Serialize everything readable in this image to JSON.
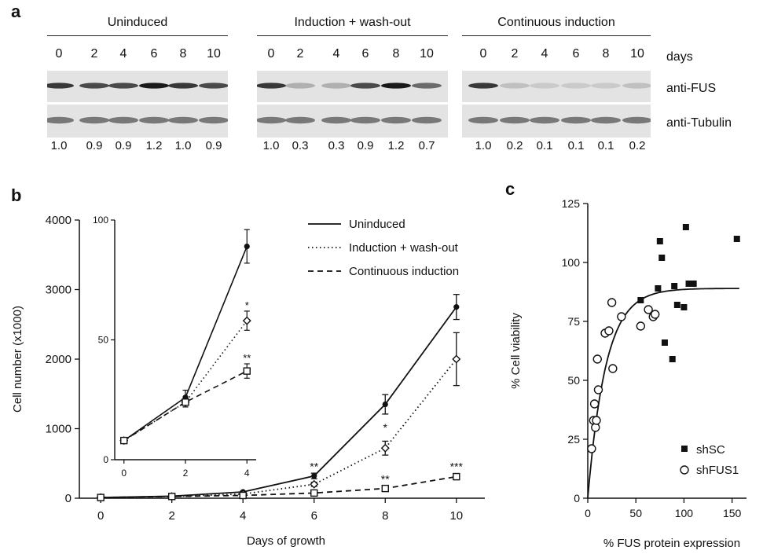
{
  "panel_a": {
    "letter": "a",
    "groups": [
      {
        "title": "Uninduced",
        "days": [
          "0",
          "2",
          "4",
          "6",
          "8",
          "10"
        ],
        "quant": [
          "1.0",
          "0.9",
          "0.9",
          "1.2",
          "1.0",
          "0.9"
        ],
        "fus": [
          1.0,
          0.9,
          0.9,
          1.2,
          1.0,
          0.9
        ],
        "tub": [
          1,
          1,
          1,
          1,
          1,
          1
        ]
      },
      {
        "title": "Induction + wash-out",
        "days": [
          "0",
          "2",
          "4",
          "6",
          "8",
          "10"
        ],
        "quant": [
          "1.0",
          "0.3",
          "0.3",
          "0.9",
          "1.2",
          "0.7"
        ],
        "fus": [
          1.0,
          0.3,
          0.3,
          0.9,
          1.2,
          0.7
        ],
        "tub": [
          1,
          1,
          1,
          1,
          1,
          1
        ]
      },
      {
        "title": "Continuous induction",
        "days": [
          "0",
          "2",
          "4",
          "6",
          "8",
          "10"
        ],
        "quant": [
          "1.0",
          "0.2",
          "0.1",
          "0.1",
          "0.1",
          "0.2"
        ],
        "fus": [
          1.0,
          0.2,
          0.1,
          0.1,
          0.1,
          0.2
        ],
        "tub": [
          1,
          1,
          1,
          1,
          1,
          1
        ]
      }
    ],
    "days_label": "days",
    "labels": {
      "fus": "anti-FUS",
      "tubulin": "anti-Tubulin"
    }
  },
  "chart_data": [
    {
      "panel": "b",
      "type": "line",
      "xlabel": "Days of growth",
      "ylabel": "Cell number (x1000)",
      "x": [
        0,
        2,
        4,
        6,
        8,
        10
      ],
      "xlim": [
        -0.6,
        10.8
      ],
      "ylim": [
        0,
        4000
      ],
      "xticks": [
        "0",
        "2",
        "4",
        "6",
        "8",
        "10"
      ],
      "yticks": [
        "0",
        "1000",
        "2000",
        "3000",
        "4000"
      ],
      "series": [
        {
          "name": "Uninduced",
          "style": "solid",
          "marker": "circle",
          "values": [
            10,
            30,
            90,
            320,
            1350,
            2750
          ],
          "err": [
            5,
            10,
            10,
            40,
            140,
            180
          ]
        },
        {
          "name": "Induction + wash-out",
          "style": "dotted",
          "marker": "diamond",
          "values": [
            10,
            25,
            60,
            200,
            720,
            2000
          ],
          "err": [
            5,
            8,
            8,
            30,
            100,
            380
          ]
        },
        {
          "name": "Continuous induction",
          "style": "dashed",
          "marker": "square",
          "values": [
            10,
            25,
            40,
            75,
            140,
            310
          ],
          "err": [
            5,
            8,
            6,
            15,
            25,
            45
          ]
        }
      ],
      "annotations": [
        {
          "x": 6,
          "y": 400,
          "text": "**"
        },
        {
          "x": 8,
          "y": 960,
          "text": "*"
        },
        {
          "x": 8,
          "y": 220,
          "text": "**"
        },
        {
          "x": 10,
          "y": 400,
          "text": "***"
        }
      ],
      "legend_position": "top-right",
      "inset": {
        "x": [
          0,
          2,
          4
        ],
        "xlim": [
          -0.3,
          4.3
        ],
        "ylim": [
          0,
          100
        ],
        "xticks": [
          "0",
          "2",
          "4"
        ],
        "yticks": [
          "0",
          "50",
          "100"
        ],
        "series": [
          {
            "values": [
              8,
              26,
              89
            ],
            "err": [
              0.5,
              3,
              7
            ]
          },
          {
            "values": [
              8,
              24,
              58
            ],
            "err": [
              0.5,
              2,
              4
            ]
          },
          {
            "values": [
              8,
              24,
              37
            ],
            "err": [
              0.5,
              2,
              3
            ]
          }
        ],
        "annotations": [
          {
            "x": 4,
            "y": 63,
            "text": "*"
          },
          {
            "x": 4,
            "y": 41,
            "text": "**"
          }
        ]
      }
    },
    {
      "panel": "c",
      "type": "scatter",
      "xlabel": "% FUS protein expression",
      "ylabel": "% Cell viability",
      "xlim": [
        0,
        165
      ],
      "ylim": [
        0,
        125
      ],
      "xticks": [
        "0",
        "50",
        "100",
        "150"
      ],
      "yticks": [
        "0",
        "25",
        "50",
        "75",
        "100",
        "125"
      ],
      "legend_position": "bottom-right",
      "series": [
        {
          "name": "shSC",
          "marker": "filled-square",
          "points": [
            [
              55,
              84
            ],
            [
              70,
              78
            ],
            [
              73,
              89
            ],
            [
              75,
              109
            ],
            [
              77,
              102
            ],
            [
              80,
              66
            ],
            [
              88,
              59
            ],
            [
              90,
              90
            ],
            [
              93,
              82
            ],
            [
              100,
              81
            ],
            [
              102,
              115
            ],
            [
              105,
              91
            ],
            [
              110,
              91
            ],
            [
              155,
              110
            ]
          ]
        },
        {
          "name": "shFUS1",
          "marker": "open-circle",
          "points": [
            [
              4,
              21
            ],
            [
              6,
              33
            ],
            [
              7,
              40
            ],
            [
              8,
              30
            ],
            [
              9,
              33
            ],
            [
              10,
              59
            ],
            [
              11,
              46
            ],
            [
              18,
              70
            ],
            [
              22,
              71
            ],
            [
              25,
              83
            ],
            [
              26,
              55
            ],
            [
              35,
              77
            ],
            [
              55,
              73
            ],
            [
              63,
              80
            ],
            [
              68,
              77
            ],
            [
              70,
              78
            ]
          ]
        }
      ],
      "fit_curve": {
        "type": "saturation",
        "ymax": 89,
        "rate": 0.053
      }
    }
  ]
}
